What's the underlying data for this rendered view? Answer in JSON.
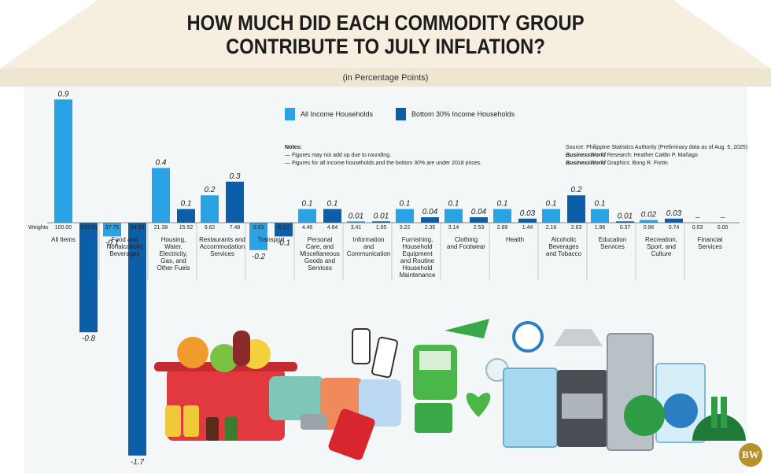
{
  "title_line1": "HOW MUCH DID EACH COMMODITY GROUP",
  "title_line2": "CONTRIBUTE TO JULY INFLATION?",
  "subtitle": "(in Percentage Points)",
  "legend": {
    "all_label": "All Income Households",
    "bottom_label": "Bottom 30% Income Households",
    "all_color": "#29a3e3",
    "bottom_color": "#0d5ea8"
  },
  "notes": {
    "heading": "Notes:",
    "line1": "— Figures may not add up due to rounding.",
    "line2": "— Figures for all income households and the bottom 30% are under 2018 prices."
  },
  "source": {
    "line1": "Source: Philippine Statistics Authority (Preliminary data as of Aug. 5, 2025)",
    "line2_label": "BusinessWorld",
    "line2_text": " Research: Heather Caitlin P. Mañago",
    "line3_label": "BusinessWorld",
    "line3_text": " Graphics: Bong R. Fortin"
  },
  "weights_label": "Weights",
  "brand": "BW",
  "chart_data": {
    "type": "bar",
    "title": "HOW MUCH DID EACH COMMODITY GROUP CONTRIBUTE TO JULY INFLATION?",
    "ylabel": "(in Percentage Points)",
    "categories": [
      "All Items",
      "Food and Nonalcoholic Beverages",
      "Housing, Water, Electricity, Gas, and Other Fuels",
      "Restaurants and Accommodation Services",
      "Transport",
      "Personal Care, and Miscellaneous Goods and Services",
      "Information and Communication",
      "Furnishing, Household Equipment and Routine Household Maintenance",
      "Clothing and Footwear",
      "Health",
      "Alcoholic Beverages and Tobacco",
      "Education Services",
      "Recreation, Sport, and Culture",
      "Financial Services"
    ],
    "category_lines": [
      [
        "All Items"
      ],
      [
        "Food and",
        "Nonalcoholic",
        "Beverages"
      ],
      [
        "Housing,",
        "Water,",
        "Electricity,",
        "Gas, and",
        "Other Fuels"
      ],
      [
        "Restaurants and",
        "Accommodation",
        "Services"
      ],
      [
        "Transport"
      ],
      [
        "Personal",
        "Care, and",
        "Miscellaneous",
        "Goods and",
        "Services"
      ],
      [
        "Information",
        "and",
        "Communication"
      ],
      [
        "Furnishing,",
        "Household",
        "Equipment",
        "and Routine",
        "Household",
        "Maintenance"
      ],
      [
        "Clothing",
        "and Footwear"
      ],
      [
        "Health"
      ],
      [
        "Alcoholic",
        "Beverages",
        "and Tobacco"
      ],
      [
        "Education",
        "Services"
      ],
      [
        "Recreation,",
        "Sport, and",
        "Culture"
      ],
      [
        "Financial",
        "Services"
      ]
    ],
    "series": [
      {
        "name": "All Income Households",
        "values": [
          0.9,
          -0.1,
          0.4,
          0.2,
          -0.2,
          0.1,
          0.01,
          0.1,
          0.1,
          0.1,
          0.1,
          0.1,
          0.02,
          0
        ],
        "labels": [
          "0.9",
          "-0.1",
          "0.4",
          "0.2",
          "-0.2",
          "0.1",
          "0.01",
          "0.1",
          "0.1",
          "0.1",
          "0.1",
          "0.1",
          "0.02",
          "–"
        ],
        "weights": [
          "100.00",
          "37.75",
          "21.38",
          "9.62",
          "9.03",
          "4.46",
          "3.41",
          "3.22",
          "3.14",
          "2.89",
          "2.16",
          "1.96",
          "0.96",
          "0.03"
        ]
      },
      {
        "name": "Bottom 30% Income Households",
        "values": [
          -0.8,
          -1.7,
          0.1,
          0.3,
          -0.1,
          0.1,
          0.01,
          0.04,
          0.04,
          0.03,
          0.2,
          0.01,
          0.03,
          0
        ],
        "labels": [
          "-0.8",
          "-1.7",
          "0.1",
          "0.3",
          "-0.1",
          "0.1",
          "0.01",
          "0.04",
          "0.04",
          "0.03",
          "0.2",
          "0.01",
          "0.03",
          "–"
        ],
        "weights": [
          "100.00",
          "54.93",
          "15.52",
          "7.48",
          "6.12",
          "4.84",
          "1.05",
          "2.35",
          "2.53",
          "1.44",
          "2.63",
          "0.37",
          "0.74",
          "0.00"
        ]
      }
    ],
    "ylim": [
      -1.7,
      0.9
    ],
    "grid": false,
    "legend_position": "top"
  }
}
